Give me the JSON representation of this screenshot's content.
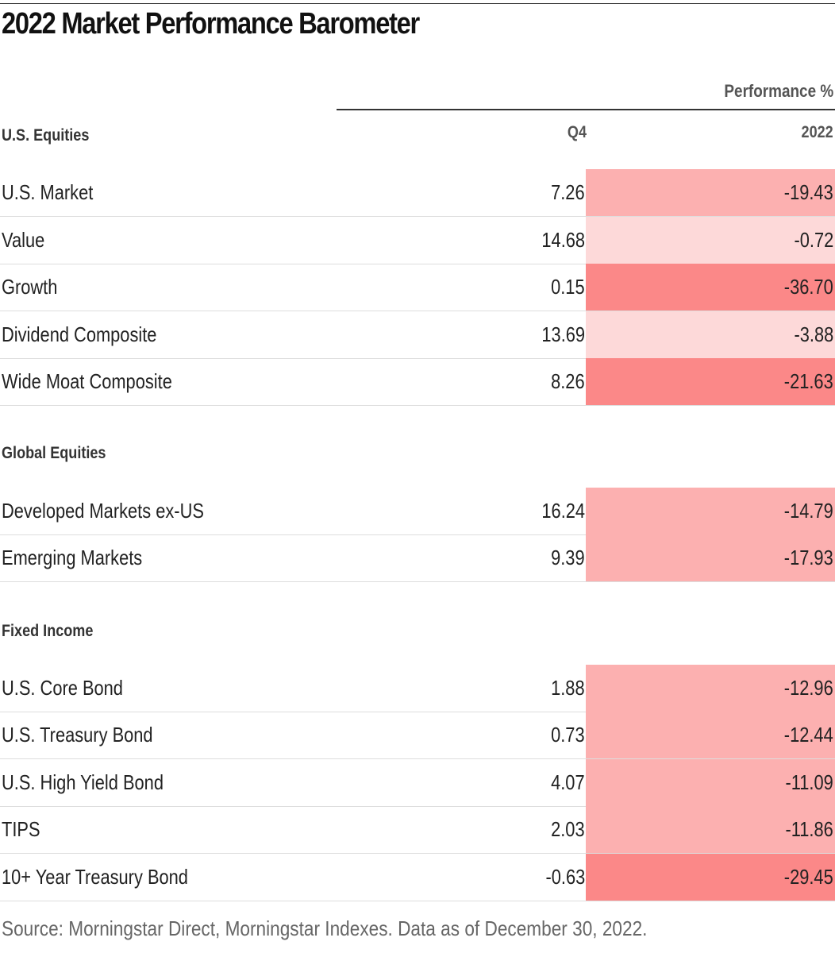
{
  "chart_data": {
    "type": "table",
    "title": "2022 Market Performance Barometer",
    "group_header": "Performance %",
    "columns": [
      "Q4",
      "2022"
    ],
    "colors": {
      "low": "#fdd9d9",
      "mid": "#fcb0b0",
      "high": "#fb8888"
    },
    "sections": [
      {
        "name": "U.S. Equities",
        "rows": [
          {
            "label": "U.S. Market",
            "q4": "7.26",
            "y2022": "-19.43",
            "shade": "mid"
          },
          {
            "label": "Value",
            "q4": "14.68",
            "y2022": "-0.72",
            "shade": "low"
          },
          {
            "label": "Growth",
            "q4": "0.15",
            "y2022": "-36.70",
            "shade": "high"
          },
          {
            "label": "Dividend Composite",
            "q4": "13.69",
            "y2022": "-3.88",
            "shade": "low"
          },
          {
            "label": "Wide Moat Composite",
            "q4": "8.26",
            "y2022": "-21.63",
            "shade": "high"
          }
        ]
      },
      {
        "name": "Global Equities",
        "rows": [
          {
            "label": "Developed Markets ex-US",
            "q4": "16.24",
            "y2022": "-14.79",
            "shade": "mid"
          },
          {
            "label": "Emerging Markets",
            "q4": "9.39",
            "y2022": "-17.93",
            "shade": "mid"
          }
        ]
      },
      {
        "name": "Fixed Income",
        "rows": [
          {
            "label": "U.S. Core Bond",
            "q4": "1.88",
            "y2022": "-12.96",
            "shade": "mid"
          },
          {
            "label": "U.S. Treasury Bond",
            "q4": "0.73",
            "y2022": "-12.44",
            "shade": "mid"
          },
          {
            "label": "U.S. High Yield Bond",
            "q4": "4.07",
            "y2022": "-11.09",
            "shade": "mid"
          },
          {
            "label": "TIPS",
            "q4": "2.03",
            "y2022": "-11.86",
            "shade": "mid"
          },
          {
            "label": "10+ Year Treasury Bond",
            "q4": "-0.63",
            "y2022": "-29.45",
            "shade": "high"
          }
        ]
      }
    ],
    "source": "Source: Morningstar Direct, Morningstar Indexes. Data as of December 30, 2022."
  }
}
